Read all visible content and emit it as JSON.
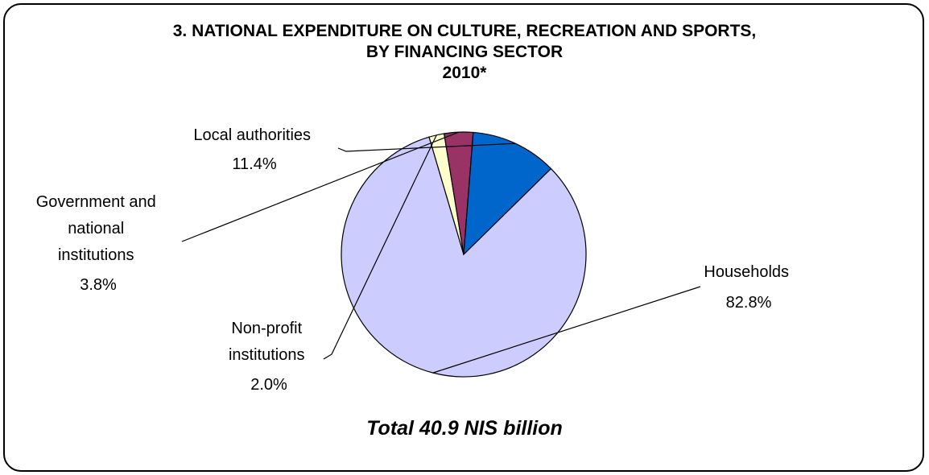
{
  "chart_data": {
    "type": "pie",
    "title": [
      "3. NATIONAL EXPENDITURE ON CULTURE, RECREATION AND SPORTS,",
      "BY FINANCING SECTOR",
      "2010*"
    ],
    "footer": "Total 40.9 NIS billion",
    "slices": [
      {
        "label": [
          "Households"
        ],
        "value": 82.8,
        "value_label": "82.8%",
        "color": "#ccccff"
      },
      {
        "label": [
          "Non-profit",
          "institutions"
        ],
        "value": 2.0,
        "value_label": "2.0%",
        "color": "#ffffcc"
      },
      {
        "label": [
          "Government and",
          "national",
          "institutions"
        ],
        "value": 3.8,
        "value_label": "3.8%",
        "color": "#993366"
      },
      {
        "label": [
          "Local authorities"
        ],
        "value": 11.4,
        "value_label": "11.4%",
        "color": "#0066cc"
      }
    ],
    "start_angle_deg": 45.5,
    "direction": "clockwise"
  }
}
